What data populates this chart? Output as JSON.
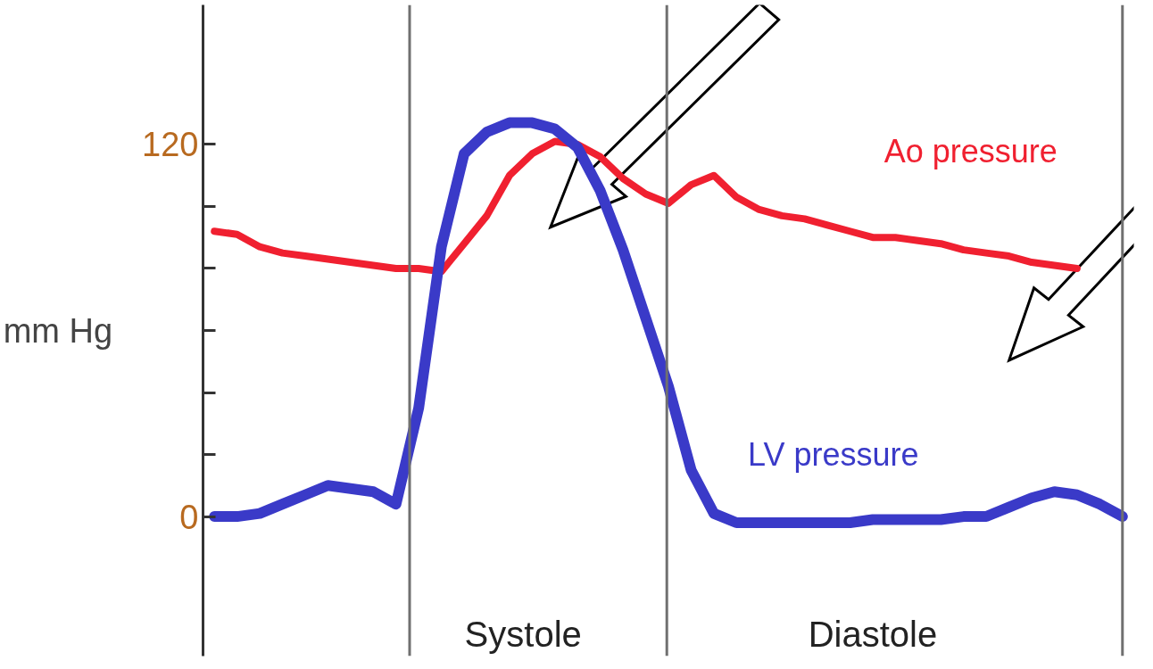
{
  "chart_data": {
    "type": "line",
    "ylabel": "mm Hg",
    "categories": [
      null,
      null,
      null,
      null,
      null,
      null,
      null,
      null,
      null,
      null,
      null,
      null,
      null,
      null,
      null,
      null,
      null,
      null,
      null,
      null,
      null,
      null,
      null,
      null,
      null,
      null,
      null,
      null,
      null,
      null,
      null,
      null,
      null,
      null,
      null,
      null,
      null,
      null,
      null,
      null,
      null
    ],
    "series": [
      {
        "name": "Ao pressure",
        "color": "#f02030",
        "values": [
          92,
          91,
          87,
          85,
          84,
          83,
          82,
          81,
          80,
          80,
          79,
          88,
          97,
          110,
          117,
          121,
          120,
          116,
          109,
          104,
          101,
          107,
          110,
          103,
          99,
          97,
          96,
          94,
          92,
          90,
          90,
          89,
          88,
          86,
          85,
          84,
          82,
          81,
          80,
          null,
          null
        ]
      },
      {
        "name": "LV pressure",
        "color": "#3a3ac8",
        "values": [
          0,
          0,
          1,
          4,
          7,
          10,
          9,
          8,
          4,
          35,
          87,
          117,
          124,
          127,
          127,
          125,
          119,
          105,
          86,
          64,
          42,
          15,
          1,
          -2,
          -2,
          -2,
          -2,
          -2,
          -2,
          -1,
          -1,
          -1,
          -1,
          0,
          0,
          3,
          6,
          8,
          7,
          4,
          0
        ]
      }
    ],
    "ylim": [
      -45,
      165
    ],
    "yticks": [
      0,
      {
        "value": 20,
        "label": null
      },
      {
        "value": 40,
        "label": null
      },
      {
        "value": 60,
        "label": null
      },
      {
        "value": 80,
        "label": null
      },
      {
        "value": 100,
        "label": null
      },
      120
    ],
    "tick_labels": "y",
    "grid": false,
    "annotations": [
      "Systole",
      "Diastole"
    ]
  }
}
